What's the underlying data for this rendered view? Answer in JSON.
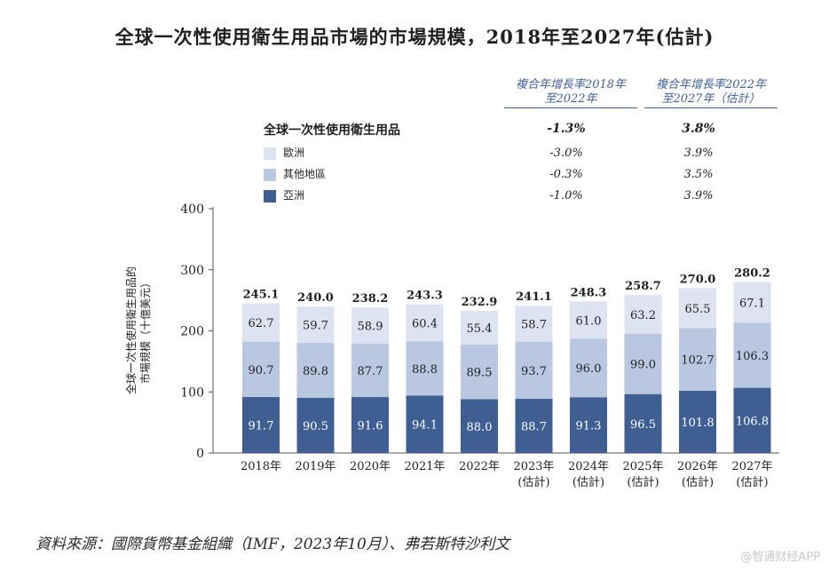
{
  "title": "全球一次性使用衛生用品市場的市場規模，2018年至2027年(估計)",
  "cagr_headers": {
    "h1_line1": "複合年增長率2018年",
    "h1_line2": "至2022年",
    "h2_line1": "複合年增長率2022年",
    "h2_line2": "至2027年（估計）"
  },
  "legend": {
    "total_label": "全球一次性使用衛生用品",
    "total_cagr1": "-1.3%",
    "total_cagr2": "3.8%",
    "items": [
      {
        "label": "歐洲",
        "color": "#dde3f0",
        "cagr1": "-3.0%",
        "cagr2": "3.9%"
      },
      {
        "label": "其他地區",
        "color": "#b9c7e1",
        "cagr1": "-0.3%",
        "cagr2": "3.5%"
      },
      {
        "label": "亞洲",
        "color": "#3f5f92",
        "cagr1": "-1.0%",
        "cagr2": "3.9%"
      }
    ]
  },
  "footnote": "資料來源：國際貨幣基金組織（IMF，2023年10月）、弗若斯特沙利文",
  "watermark": "@智通财经APP",
  "chart_data": {
    "type": "bar",
    "stacked": true,
    "ylabel_line1": "全球一次性使用衛生用品的",
    "ylabel_line2": "市場規模（十億美元）",
    "ylim": [
      0,
      400
    ],
    "yticks": [
      0,
      100,
      200,
      300,
      400
    ],
    "categories": [
      [
        "2018年"
      ],
      [
        "2019年"
      ],
      [
        "2020年"
      ],
      [
        "2021年"
      ],
      [
        "2022年"
      ],
      [
        "2023年",
        "(估計)"
      ],
      [
        "2024年",
        "(估計)"
      ],
      [
        "2025年",
        "(估計)"
      ],
      [
        "2026年",
        "(估計)"
      ],
      [
        "2027年",
        "(估計)"
      ]
    ],
    "series": [
      {
        "name": "亞洲",
        "color": "#3f5f92",
        "label_color": "#ffffff",
        "values": [
          91.7,
          90.5,
          91.6,
          94.1,
          88.0,
          88.7,
          91.3,
          96.5,
          101.8,
          106.8
        ]
      },
      {
        "name": "其他地區",
        "color": "#b9c7e1",
        "label_color": "#222222",
        "values": [
          90.7,
          89.8,
          87.7,
          88.8,
          89.5,
          93.7,
          96.0,
          99.0,
          102.7,
          106.3
        ]
      },
      {
        "name": "歐洲",
        "color": "#dde3f0",
        "label_color": "#222222",
        "values": [
          62.7,
          59.7,
          58.9,
          60.4,
          55.4,
          58.7,
          61.0,
          63.2,
          65.5,
          67.1
        ]
      }
    ],
    "totals": [
      245.1,
      240.0,
      238.2,
      243.3,
      232.9,
      241.1,
      248.3,
      258.7,
      270.0,
      280.2
    ]
  }
}
